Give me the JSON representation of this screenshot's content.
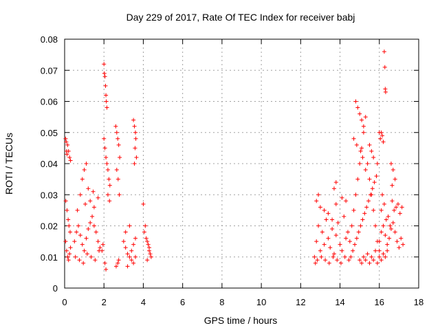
{
  "chart_data": {
    "type": "scatter",
    "title": "Day 229 of 2017, Rate Of TEC Index for receiver babj",
    "xlabel": "GPS time / hours",
    "ylabel": "ROTI / TECUs",
    "xlim": [
      0,
      18
    ],
    "ylim": [
      0,
      0.08
    ],
    "x_ticks": [
      0,
      2,
      4,
      6,
      8,
      10,
      12,
      14,
      16,
      18
    ],
    "x_tick_labels": [
      "0",
      "2",
      "4",
      "6",
      "8",
      "10",
      "12",
      "14",
      "16",
      "18"
    ],
    "y_ticks": [
      0,
      0.01,
      0.02,
      0.03,
      0.04,
      0.05,
      0.06,
      0.07,
      0.08
    ],
    "y_tick_labels": [
      "0",
      "0.01",
      "0.02",
      "0.03",
      "0.04",
      "0.05",
      "0.06",
      "0.07",
      "0.08"
    ],
    "grid": true,
    "marker": "+",
    "color": "#ff0000",
    "series": [
      {
        "name": "ROTI",
        "x": [
          0.05,
          0.08,
          0.1,
          0.12,
          0.15,
          0.2,
          0.25,
          0.3,
          0.06,
          0.12,
          0.18,
          0.22,
          0.28,
          0.05,
          0.1,
          0.16,
          0.2,
          0.25,
          0.3,
          0.5,
          0.6,
          0.7,
          0.8,
          0.9,
          1.0,
          1.1,
          1.2,
          1.3,
          1.4,
          1.5,
          1.6,
          1.7,
          1.8,
          1.9,
          0.8,
          0.9,
          1.0,
          1.1,
          1.2,
          1.3,
          1.5,
          1.7,
          0.55,
          0.75,
          0.95,
          1.15,
          1.35,
          1.55,
          1.75,
          1.95,
          0.65,
          1.05,
          1.45,
          2.0,
          2.02,
          2.05,
          2.08,
          2.1,
          2.12,
          2.15,
          2.0,
          2.05,
          2.1,
          2.15,
          2.2,
          2.25,
          2.3,
          2.2,
          2.28,
          2.05,
          2.1,
          2.6,
          2.65,
          2.7,
          2.75,
          2.8,
          2.65,
          2.72,
          2.78,
          2.7,
          2.62,
          2.75,
          3.0,
          3.1,
          3.2,
          3.3,
          3.4,
          3.5,
          3.6,
          3.1,
          3.3,
          3.5,
          3.2,
          3.4,
          3.6,
          3.5,
          3.55,
          3.6,
          3.62,
          3.58,
          3.65,
          3.55,
          4.0,
          4.1,
          4.2,
          4.3,
          4.4,
          4.05,
          4.15,
          4.25,
          4.35,
          4.2,
          4.3,
          12.7,
          12.8,
          12.9,
          13.0,
          13.1,
          13.2,
          13.3,
          13.4,
          13.5,
          13.6,
          13.7,
          13.8,
          13.9,
          14.0,
          14.1,
          14.2,
          14.3,
          14.4,
          12.75,
          12.85,
          13.05,
          13.25,
          13.45,
          13.65,
          13.85,
          14.05,
          14.25,
          14.45,
          12.8,
          13.0,
          13.2,
          13.4,
          13.6,
          13.8,
          12.9,
          13.7,
          13.8,
          14.1,
          14.3,
          14.5,
          14.6,
          14.7,
          14.8,
          14.9,
          15.0,
          15.1,
          15.2,
          15.3,
          15.4,
          15.5,
          15.6,
          15.7,
          15.8,
          15.9,
          16.0,
          14.55,
          14.65,
          14.75,
          14.85,
          14.95,
          15.05,
          15.15,
          15.25,
          15.35,
          15.45,
          15.55,
          15.65,
          15.75,
          15.85,
          14.8,
          14.9,
          15.0,
          15.1,
          15.2,
          14.7,
          14.85,
          15.05,
          15.15,
          15.3,
          15.5,
          15.6,
          15.7,
          15.9,
          16.0,
          16.05,
          15.0,
          15.1,
          15.2,
          15.3,
          15.4,
          15.5,
          15.6,
          15.7,
          15.8,
          15.9,
          16.0,
          16.1,
          16.2,
          16.3,
          16.4,
          16.0,
          16.1,
          16.2,
          16.3,
          16.4,
          16.5,
          16.6,
          16.7,
          16.8,
          16.9,
          17.0,
          17.1,
          17.2,
          16.1,
          16.25,
          16.45,
          16.65,
          16.85,
          17.05,
          16.15,
          16.35,
          16.55,
          16.75,
          16.95,
          17.15,
          16.25,
          16.28,
          16.3,
          16.32,
          16.1,
          16.15,
          16.2,
          16.6,
          16.7,
          16.8,
          16.65
        ],
        "y": [
          0.048,
          0.047,
          0.044,
          0.043,
          0.046,
          0.044,
          0.042,
          0.041,
          0.028,
          0.025,
          0.022,
          0.02,
          0.018,
          0.015,
          0.012,
          0.01,
          0.009,
          0.011,
          0.013,
          0.015,
          0.018,
          0.02,
          0.017,
          0.014,
          0.012,
          0.016,
          0.019,
          0.021,
          0.023,
          0.02,
          0.018,
          0.015,
          0.013,
          0.012,
          0.03,
          0.035,
          0.038,
          0.04,
          0.032,
          0.028,
          0.026,
          0.029,
          0.01,
          0.009,
          0.008,
          0.011,
          0.01,
          0.009,
          0.012,
          0.014,
          0.025,
          0.027,
          0.031,
          0.072,
          0.069,
          0.068,
          0.065,
          0.062,
          0.06,
          0.058,
          0.048,
          0.045,
          0.042,
          0.04,
          0.038,
          0.035,
          0.033,
          0.03,
          0.028,
          0.008,
          0.006,
          0.052,
          0.05,
          0.048,
          0.046,
          0.042,
          0.038,
          0.035,
          0.03,
          0.008,
          0.007,
          0.009,
          0.015,
          0.013,
          0.011,
          0.01,
          0.012,
          0.014,
          0.016,
          0.018,
          0.02,
          0.008,
          0.007,
          0.009,
          0.01,
          0.054,
          0.052,
          0.05,
          0.048,
          0.045,
          0.042,
          0.04,
          0.027,
          0.02,
          0.015,
          0.012,
          0.01,
          0.018,
          0.016,
          0.014,
          0.011,
          0.009,
          0.013,
          0.01,
          0.015,
          0.02,
          0.012,
          0.018,
          0.014,
          0.022,
          0.016,
          0.013,
          0.019,
          0.011,
          0.017,
          0.021,
          0.014,
          0.012,
          0.023,
          0.016,
          0.018,
          0.008,
          0.009,
          0.01,
          0.009,
          0.008,
          0.01,
          0.009,
          0.008,
          0.01,
          0.009,
          0.028,
          0.026,
          0.025,
          0.024,
          0.022,
          0.027,
          0.03,
          0.032,
          0.034,
          0.029,
          0.028,
          0.015,
          0.02,
          0.025,
          0.03,
          0.035,
          0.04,
          0.045,
          0.05,
          0.055,
          0.04,
          0.035,
          0.03,
          0.025,
          0.02,
          0.015,
          0.012,
          0.01,
          0.012,
          0.014,
          0.016,
          0.018,
          0.02,
          0.022,
          0.024,
          0.026,
          0.028,
          0.03,
          0.032,
          0.034,
          0.036,
          0.06,
          0.058,
          0.056,
          0.054,
          0.052,
          0.048,
          0.046,
          0.044,
          0.042,
          0.038,
          0.046,
          0.044,
          0.042,
          0.04,
          0.05,
          0.048,
          0.009,
          0.008,
          0.01,
          0.009,
          0.011,
          0.008,
          0.01,
          0.009,
          0.012,
          0.008,
          0.01,
          0.009,
          0.011,
          0.01,
          0.012,
          0.015,
          0.018,
          0.02,
          0.017,
          0.014,
          0.016,
          0.019,
          0.021,
          0.018,
          0.015,
          0.013,
          0.016,
          0.014,
          0.025,
          0.027,
          0.023,
          0.028,
          0.026,
          0.024,
          0.03,
          0.022,
          0.02,
          0.025,
          0.027,
          0.026,
          0.076,
          0.071,
          0.064,
          0.063,
          0.05,
          0.049,
          0.047,
          0.04,
          0.038,
          0.035,
          0.033
        ]
      }
    ]
  }
}
